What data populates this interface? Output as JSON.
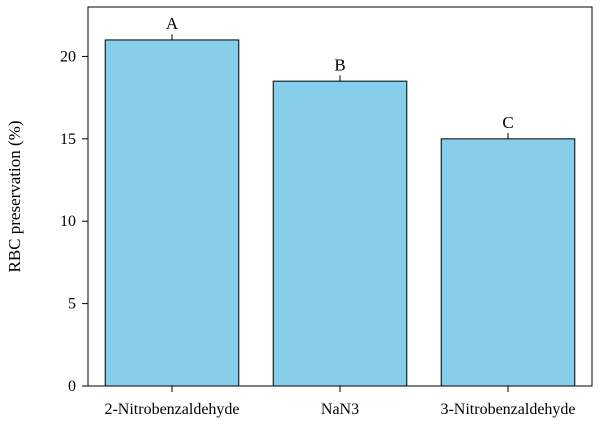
{
  "chart_data": {
    "type": "bar",
    "categories": [
      "2-Nitrobenzaldehyde",
      "NaN3",
      "3-Nitrobenzaldehyde"
    ],
    "values": [
      21.0,
      18.5,
      15.0
    ],
    "errors": [
      0.35,
      0.35,
      0.35
    ],
    "significance_labels": [
      "A",
      "B",
      "C"
    ],
    "title": "",
    "xlabel": "",
    "ylabel": "RBC preservation (%)",
    "ylim": [
      0,
      23
    ],
    "yticks": [
      0,
      5,
      10,
      15,
      20
    ],
    "grid": false,
    "legend": "none",
    "bar_color": "#87CEEB",
    "edge_color": "#000000"
  }
}
